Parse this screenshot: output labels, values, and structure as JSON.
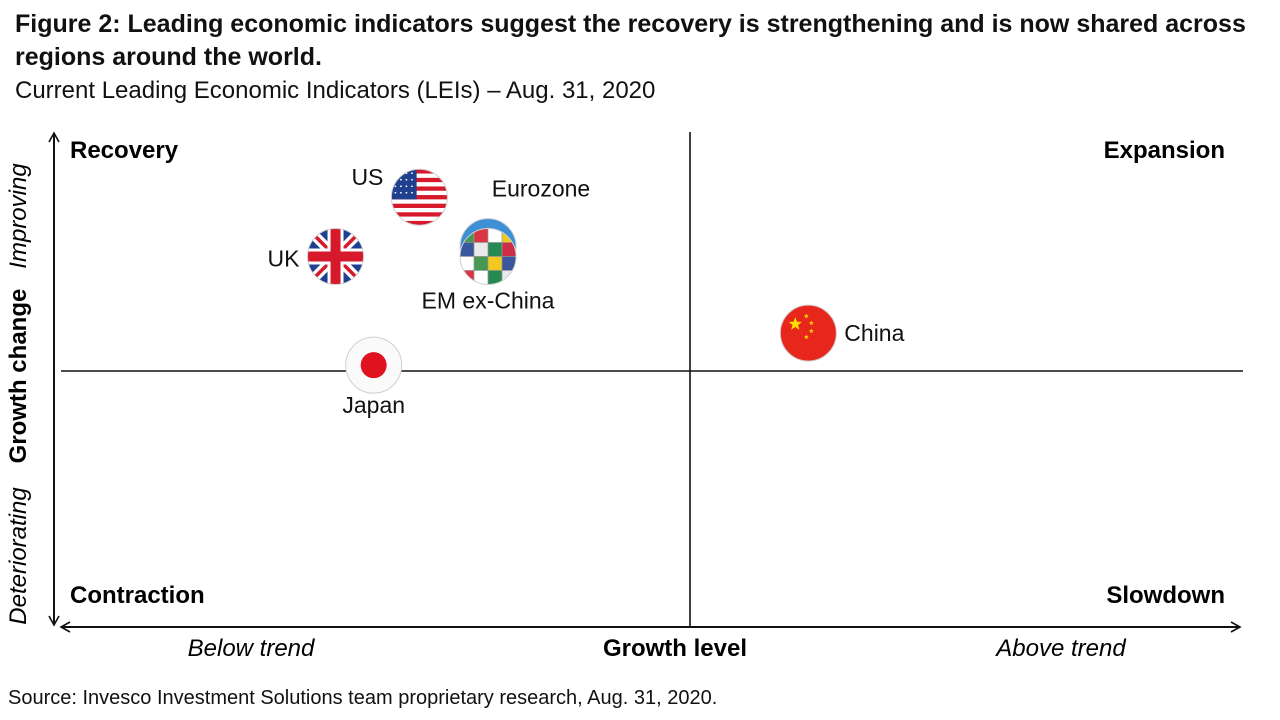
{
  "chart_data": {
    "type": "scatter",
    "title": "Figure 2: Leading economic indicators suggest the recovery is strengthening and is now shared across regions around the world.",
    "subtitle": "Current Leading Economic Indicators (LEIs) – Aug. 31, 2020",
    "xlabel": "Growth level",
    "ylabel": "Growth change",
    "x_low_label": "Below trend",
    "x_high_label": "Above trend",
    "y_low_label": "Deteriorating",
    "y_high_label": "Improving",
    "xlim": [
      -1,
      0.55
    ],
    "ylim": [
      -1,
      1
    ],
    "quadrants": {
      "top_left": "Recovery",
      "top_right": "Expansion",
      "bottom_left": "Contraction",
      "bottom_right": "Slowdown"
    },
    "points": [
      {
        "name": "US",
        "x": -0.53,
        "y": 0.74,
        "flag": "us-flag",
        "label_pos": "left"
      },
      {
        "name": "Eurozone",
        "x": -0.44,
        "y": 0.54,
        "flag": "eu-flag",
        "label_pos": "top-right"
      },
      {
        "name": "UK",
        "x": -0.64,
        "y": 0.5,
        "flag": "uk-flag",
        "label_pos": "left"
      },
      {
        "name": "EM ex-China",
        "x": -0.44,
        "y": 0.5,
        "flag": "em-flags",
        "label_pos": "below"
      },
      {
        "name": "China",
        "x": -0.02,
        "y": 0.19,
        "flag": "china-flag",
        "label_pos": "right"
      },
      {
        "name": "Japan",
        "x": -0.59,
        "y": 0.06,
        "flag": "japan-flag",
        "label_pos": "below"
      }
    ]
  },
  "source": "Source: Invesco Investment Solutions team proprietary research, Aug. 31, 2020.",
  "colors": {
    "flag_red": "#d61a2b",
    "flag_blue": "#1f3f8f",
    "eu_blue": "#3d8fd6",
    "japan_red": "#e0121f",
    "china_red": "#e8271c",
    "china_yellow": "#ffde00"
  }
}
